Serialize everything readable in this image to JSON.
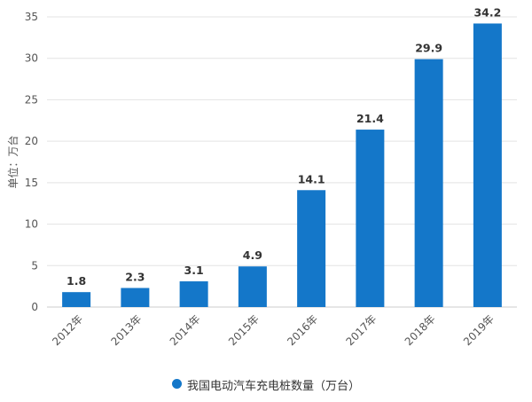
{
  "colors": {
    "bar": "#1477c9",
    "grid": "#e3e3e3",
    "axis": "#cccccc",
    "tick_text": "#555555",
    "label_text": "#333333"
  },
  "chart_data": {
    "type": "bar",
    "categories": [
      "2012年",
      "2013年",
      "2014年",
      "2015年",
      "2016年",
      "2017年",
      "2018年",
      "2019年"
    ],
    "series": [
      {
        "name": "我国电动汽车充电桩数量（万台）",
        "values": [
          1.8,
          2.3,
          3.1,
          4.9,
          14.1,
          21.4,
          29.9,
          34.2
        ]
      }
    ],
    "data_labels": [
      "1.8",
      "2.3",
      "3.1",
      "4.9",
      "14.1",
      "21.4",
      "29.9",
      "34.2"
    ],
    "ylabel": "单位：万台",
    "xlabel": "",
    "ylim": [
      0,
      35
    ],
    "yticks": [
      0,
      5,
      10,
      15,
      20,
      25,
      30,
      35
    ],
    "grid": true,
    "legend": "bottom"
  }
}
